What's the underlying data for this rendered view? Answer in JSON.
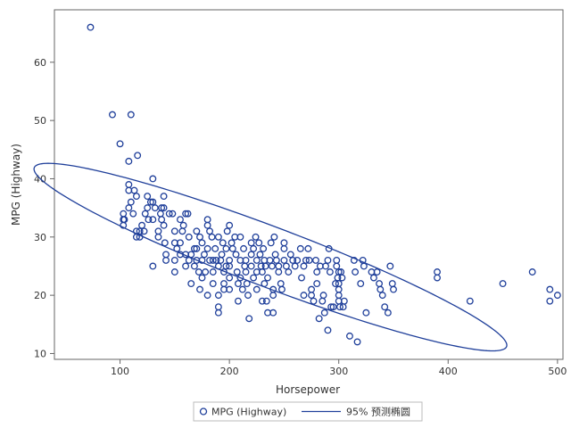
{
  "chart_data": {
    "type": "scatter",
    "xlabel": "Horsepower",
    "ylabel": "MPG (Highway)",
    "xlim": [
      40,
      505
    ],
    "ylim": [
      9,
      69
    ],
    "x_ticks": [
      100,
      200,
      300,
      400,
      500
    ],
    "y_ticks": [
      10,
      20,
      30,
      40,
      50,
      60
    ],
    "x_tick_labels": [
      "100",
      "200",
      "300",
      "400",
      "500"
    ],
    "y_tick_labels": [
      "10",
      "20",
      "30",
      "40",
      "50",
      "60"
    ],
    "grid": false,
    "legend_position": "bottom-center",
    "marker_color": "#1f3f9a",
    "ellipse_color": "#1f3f9a",
    "series": [
      {
        "name": "MPG (Highway)",
        "kind": "scatter",
        "points": [
          [
            73,
            66
          ],
          [
            93,
            51
          ],
          [
            110,
            51
          ],
          [
            100,
            46
          ],
          [
            108,
            43
          ],
          [
            116,
            44
          ],
          [
            103,
            34
          ],
          [
            103,
            33
          ],
          [
            103,
            32
          ],
          [
            104,
            33
          ],
          [
            108,
            35
          ],
          [
            108,
            38
          ],
          [
            108,
            39
          ],
          [
            110,
            36
          ],
          [
            112,
            34
          ],
          [
            113,
            38
          ],
          [
            115,
            37
          ],
          [
            115,
            30
          ],
          [
            115,
            31
          ],
          [
            118,
            31
          ],
          [
            118,
            30
          ],
          [
            120,
            32
          ],
          [
            122,
            31
          ],
          [
            123,
            34
          ],
          [
            125,
            35
          ],
          [
            125,
            37
          ],
          [
            126,
            33
          ],
          [
            128,
            36
          ],
          [
            130,
            40
          ],
          [
            130,
            36
          ],
          [
            130,
            33
          ],
          [
            130,
            25
          ],
          [
            132,
            35
          ],
          [
            135,
            30
          ],
          [
            135,
            31
          ],
          [
            137,
            34
          ],
          [
            138,
            35
          ],
          [
            138,
            33
          ],
          [
            140,
            35
          ],
          [
            140,
            32
          ],
          [
            140,
            37
          ],
          [
            141,
            29
          ],
          [
            142,
            27
          ],
          [
            142,
            26
          ],
          [
            145,
            34
          ],
          [
            148,
            34
          ],
          [
            150,
            24
          ],
          [
            150,
            26
          ],
          [
            150,
            29
          ],
          [
            150,
            31
          ],
          [
            152,
            28
          ],
          [
            155,
            27
          ],
          [
            155,
            29
          ],
          [
            155,
            33
          ],
          [
            157,
            31
          ],
          [
            158,
            32
          ],
          [
            160,
            27
          ],
          [
            160,
            25
          ],
          [
            160,
            34
          ],
          [
            162,
            34
          ],
          [
            163,
            26
          ],
          [
            163,
            30
          ],
          [
            165,
            27
          ],
          [
            165,
            22
          ],
          [
            168,
            28
          ],
          [
            168,
            25
          ],
          [
            170,
            26
          ],
          [
            170,
            28
          ],
          [
            170,
            31
          ],
          [
            172,
            24
          ],
          [
            173,
            21
          ],
          [
            173,
            30
          ],
          [
            175,
            23
          ],
          [
            175,
            26
          ],
          [
            175,
            29
          ],
          [
            177,
            27
          ],
          [
            178,
            24
          ],
          [
            180,
            20
          ],
          [
            180,
            28
          ],
          [
            180,
            32
          ],
          [
            180,
            33
          ],
          [
            182,
            26
          ],
          [
            182,
            31
          ],
          [
            184,
            30
          ],
          [
            185,
            26
          ],
          [
            185,
            22
          ],
          [
            185,
            24
          ],
          [
            187,
            28
          ],
          [
            188,
            26
          ],
          [
            190,
            30
          ],
          [
            190,
            25
          ],
          [
            190,
            20
          ],
          [
            190,
            18
          ],
          [
            190,
            17
          ],
          [
            192,
            26
          ],
          [
            193,
            27
          ],
          [
            194,
            29
          ],
          [
            195,
            22
          ],
          [
            195,
            24
          ],
          [
            195,
            21
          ],
          [
            197,
            25
          ],
          [
            197,
            28
          ],
          [
            198,
            31
          ],
          [
            200,
            32
          ],
          [
            200,
            26
          ],
          [
            200,
            25
          ],
          [
            200,
            23
          ],
          [
            200,
            21
          ],
          [
            202,
            29
          ],
          [
            203,
            28
          ],
          [
            205,
            30
          ],
          [
            206,
            27
          ],
          [
            207,
            24
          ],
          [
            208,
            22
          ],
          [
            208,
            19
          ],
          [
            210,
            30
          ],
          [
            210,
            26
          ],
          [
            210,
            23
          ],
          [
            212,
            21
          ],
          [
            213,
            28
          ],
          [
            214,
            25
          ],
          [
            215,
            26
          ],
          [
            215,
            24
          ],
          [
            216,
            22
          ],
          [
            217,
            20
          ],
          [
            218,
            16
          ],
          [
            220,
            29
          ],
          [
            220,
            27
          ],
          [
            220,
            25
          ],
          [
            222,
            28
          ],
          [
            222,
            23
          ],
          [
            224,
            30
          ],
          [
            225,
            26
          ],
          [
            225,
            24
          ],
          [
            225,
            21
          ],
          [
            227,
            29
          ],
          [
            228,
            27
          ],
          [
            229,
            25
          ],
          [
            230,
            24
          ],
          [
            230,
            19
          ],
          [
            231,
            28
          ],
          [
            232,
            26
          ],
          [
            232,
            22
          ],
          [
            233,
            25
          ],
          [
            234,
            19
          ],
          [
            235,
            23
          ],
          [
            235,
            17
          ],
          [
            237,
            26
          ],
          [
            238,
            29
          ],
          [
            239,
            25
          ],
          [
            240,
            21
          ],
          [
            240,
            20
          ],
          [
            240,
            17
          ],
          [
            241,
            30
          ],
          [
            242,
            27
          ],
          [
            243,
            26
          ],
          [
            245,
            25
          ],
          [
            245,
            24
          ],
          [
            247,
            22
          ],
          [
            248,
            21
          ],
          [
            250,
            28
          ],
          [
            250,
            29
          ],
          [
            250,
            26
          ],
          [
            252,
            25
          ],
          [
            254,
            24
          ],
          [
            256,
            27
          ],
          [
            258,
            26
          ],
          [
            260,
            25
          ],
          [
            262,
            26
          ],
          [
            265,
            28
          ],
          [
            266,
            23
          ],
          [
            268,
            20
          ],
          [
            268,
            25
          ],
          [
            270,
            26
          ],
          [
            272,
            28
          ],
          [
            273,
            26
          ],
          [
            275,
            21
          ],
          [
            275,
            20
          ],
          [
            277,
            19
          ],
          [
            279,
            26
          ],
          [
            280,
            24
          ],
          [
            280,
            22
          ],
          [
            282,
            16
          ],
          [
            283,
            25
          ],
          [
            285,
            19
          ],
          [
            286,
            20
          ],
          [
            287,
            17
          ],
          [
            288,
            25
          ],
          [
            290,
            26
          ],
          [
            290,
            14
          ],
          [
            291,
            28
          ],
          [
            292,
            24
          ],
          [
            293,
            18
          ],
          [
            295,
            18
          ],
          [
            297,
            22
          ],
          [
            298,
            26
          ],
          [
            298,
            25
          ],
          [
            299,
            23
          ],
          [
            300,
            24
          ],
          [
            300,
            22
          ],
          [
            300,
            21
          ],
          [
            300,
            20
          ],
          [
            300,
            19
          ],
          [
            301,
            18
          ],
          [
            302,
            24
          ],
          [
            303,
            23
          ],
          [
            304,
            18
          ],
          [
            305,
            19
          ],
          [
            310,
            13
          ],
          [
            314,
            26
          ],
          [
            315,
            24
          ],
          [
            317,
            12
          ],
          [
            320,
            22
          ],
          [
            322,
            26
          ],
          [
            323,
            25
          ],
          [
            325,
            17
          ],
          [
            330,
            24
          ],
          [
            332,
            23
          ],
          [
            335,
            24
          ],
          [
            337,
            22
          ],
          [
            338,
            21
          ],
          [
            340,
            20
          ],
          [
            342,
            18
          ],
          [
            345,
            17
          ],
          [
            347,
            25
          ],
          [
            349,
            22
          ],
          [
            350,
            21
          ],
          [
            390,
            24
          ],
          [
            390,
            23
          ],
          [
            420,
            19
          ],
          [
            450,
            22
          ],
          [
            477,
            24
          ],
          [
            493,
            21
          ],
          [
            493,
            19
          ],
          [
            500,
            20
          ]
        ]
      },
      {
        "name": "95% 预测椭圆",
        "kind": "ellipse",
        "center": [
          237.5,
          26.55
        ],
        "semi_axis_major": 216.7,
        "semi_axis_minor": 5.5,
        "slope_dy_dx": -0.07
      }
    ]
  }
}
